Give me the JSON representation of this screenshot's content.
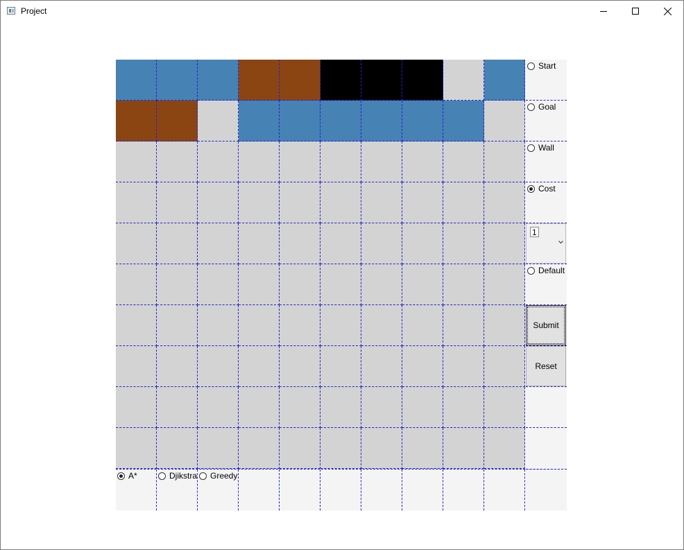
{
  "window": {
    "title": "Project"
  },
  "colors": {
    "empty": "#d3d3d3",
    "start": "#4682b4",
    "goal": "#8b4513",
    "wall": "#000000",
    "panel": "#f4f4f4",
    "gridline": "#2222cc"
  },
  "grid": {
    "rows": [
      [
        "start",
        "start",
        "start",
        "goal",
        "goal",
        "wall",
        "wall",
        "wall",
        "empty",
        "start"
      ],
      [
        "goal",
        "goal",
        "empty",
        "start",
        "start",
        "start",
        "start",
        "start",
        "start",
        "empty"
      ],
      [
        "empty",
        "empty",
        "empty",
        "empty",
        "empty",
        "empty",
        "empty",
        "empty",
        "empty",
        "empty"
      ],
      [
        "empty",
        "empty",
        "empty",
        "empty",
        "empty",
        "empty",
        "empty",
        "empty",
        "empty",
        "empty"
      ],
      [
        "empty",
        "empty",
        "empty",
        "empty",
        "empty",
        "empty",
        "empty",
        "empty",
        "empty",
        "empty"
      ],
      [
        "empty",
        "empty",
        "empty",
        "empty",
        "empty",
        "empty",
        "empty",
        "empty",
        "empty",
        "empty"
      ],
      [
        "empty",
        "empty",
        "empty",
        "empty",
        "empty",
        "empty",
        "empty",
        "empty",
        "empty",
        "empty"
      ],
      [
        "empty",
        "empty",
        "empty",
        "empty",
        "empty",
        "empty",
        "empty",
        "empty",
        "empty",
        "empty"
      ],
      [
        "empty",
        "empty",
        "empty",
        "empty",
        "empty",
        "empty",
        "empty",
        "empty",
        "empty",
        "empty"
      ],
      [
        "empty",
        "empty",
        "empty",
        "empty",
        "empty",
        "empty",
        "empty",
        "empty",
        "empty",
        "empty"
      ]
    ]
  },
  "mode_options": {
    "start": {
      "label": "Start",
      "checked": false
    },
    "goal": {
      "label": "Goal",
      "checked": false
    },
    "wall": {
      "label": "Wall",
      "checked": false
    },
    "cost": {
      "label": "Cost",
      "checked": true
    },
    "default": {
      "label": "Default",
      "checked": false
    }
  },
  "cost_select": {
    "value": "1"
  },
  "buttons": {
    "submit": "Submit",
    "reset": "Reset"
  },
  "algorithms": {
    "astar": {
      "label": "A*",
      "checked": true
    },
    "dijkstra": {
      "label": "Djikstra",
      "checked": false
    },
    "greedy": {
      "label": "Greedy",
      "checked": false
    }
  }
}
